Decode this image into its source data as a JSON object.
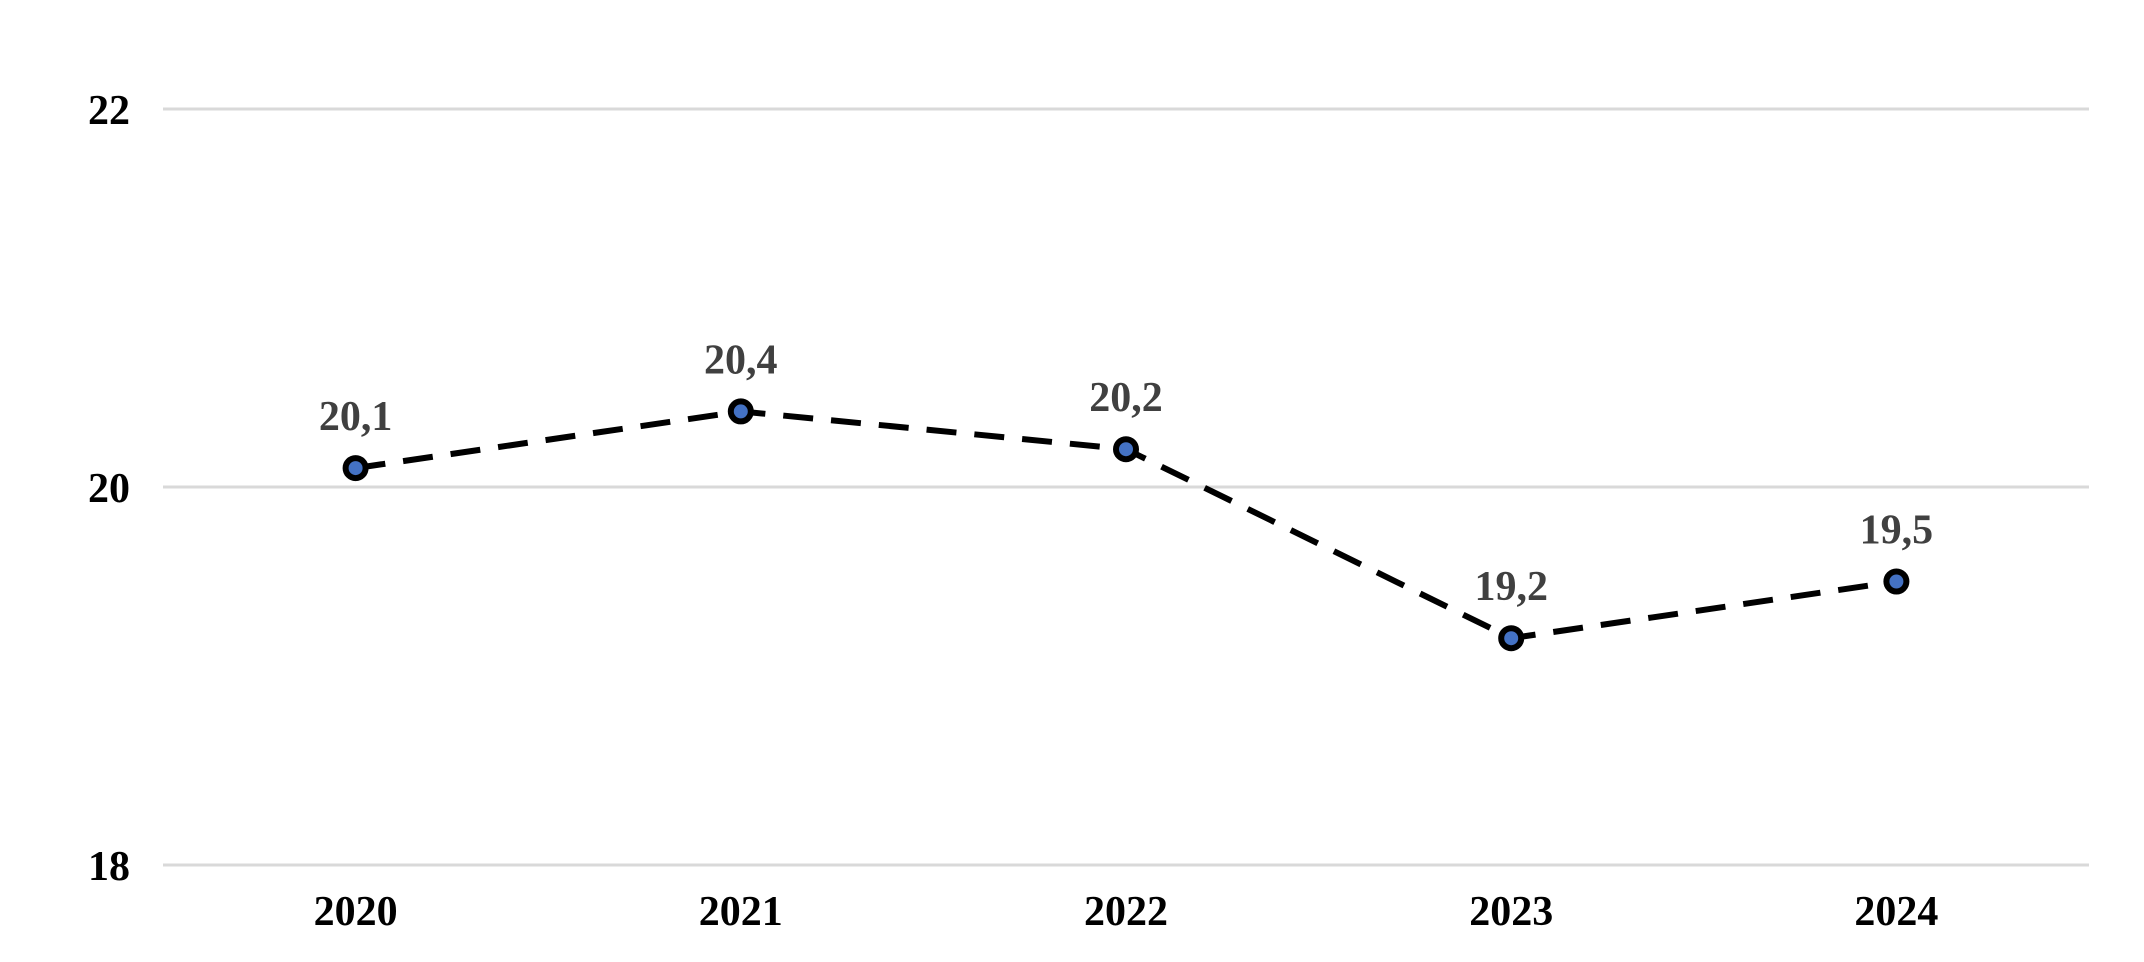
{
  "chart_data": {
    "type": "line",
    "categories": [
      "2020",
      "2021",
      "2022",
      "2023",
      "2024"
    ],
    "values": [
      20.1,
      20.4,
      20.2,
      19.2,
      19.5
    ],
    "point_labels": [
      "20,1",
      "20,4",
      "20,2",
      "19,2",
      "19,5"
    ],
    "title": "",
    "xlabel": "",
    "ylabel": "",
    "ylim": [
      18,
      22
    ],
    "yticks": [
      18,
      20,
      22
    ],
    "ytick_labels": [
      "18",
      "20",
      "22"
    ],
    "grid": "horizontal-only",
    "legend_position": "none",
    "line_style": "dashed",
    "line_color": "#000000",
    "marker_shape": "circle",
    "marker_fill": "#4472C4",
    "marker_stroke": "#000000",
    "data_label_color": "#404040",
    "axis_label_color": "#000000",
    "gridline_color": "#D9D9D9",
    "background_color": "#FFFFFF"
  }
}
